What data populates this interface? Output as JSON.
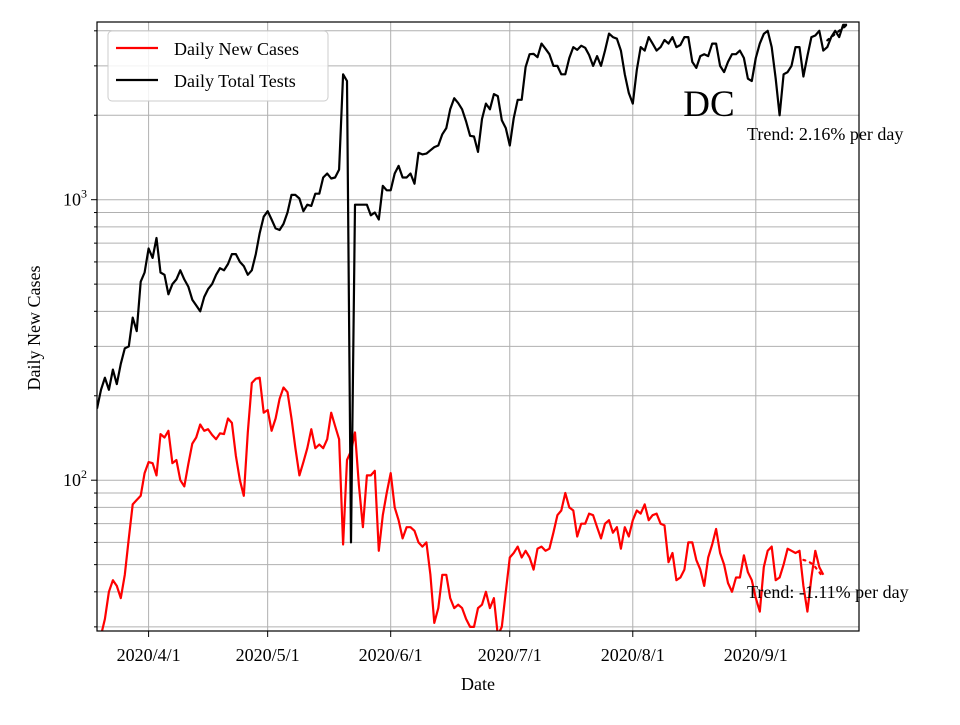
{
  "chart_data": {
    "type": "line",
    "title": "DC",
    "xlabel": "Date",
    "ylabel": "Daily New Cases",
    "yscale": "log",
    "xlim": [
      "2020-03-19",
      "2020-09-27"
    ],
    "ylim": [
      29,
      4300
    ],
    "grid": true,
    "legend_position": "top-left",
    "x_ticks": [
      {
        "date": "2020-04-01",
        "label": "2020/4/1"
      },
      {
        "date": "2020-05-01",
        "label": "2020/5/1"
      },
      {
        "date": "2020-06-01",
        "label": "2020/6/1"
      },
      {
        "date": "2020-07-01",
        "label": "2020/7/1"
      },
      {
        "date": "2020-08-01",
        "label": "2020/8/1"
      },
      {
        "date": "2020-09-01",
        "label": "2020/9/1"
      }
    ],
    "y_ticks": [
      {
        "value": 100,
        "label_base": "10",
        "label_exp": "2"
      },
      {
        "value": 1000,
        "label_base": "10",
        "label_exp": "3"
      }
    ],
    "start_date": "2020-03-19",
    "series": [
      {
        "name": "Daily New Cases",
        "color": "#ff0000",
        "values": [
          26,
          28,
          32,
          40,
          44,
          42,
          38,
          46,
          62,
          82,
          85,
          88,
          106,
          116,
          115,
          104,
          146,
          142,
          150,
          115,
          118,
          100,
          95,
          114,
          135,
          142,
          158,
          150,
          152,
          145,
          140,
          147,
          146,
          166,
          160,
          122,
          100,
          88,
          148,
          222,
          230,
          232,
          174,
          178,
          150,
          166,
          195,
          214,
          206,
          166,
          130,
          104,
          116,
          130,
          152,
          130,
          134,
          130,
          140,
          174,
          156,
          140,
          59,
          118,
          127,
          148,
          96,
          68,
          104,
          104,
          108,
          56,
          75,
          90,
          106,
          80,
          72,
          62,
          68,
          68,
          66,
          60,
          58,
          60,
          46,
          31,
          35,
          46,
          46,
          38,
          35,
          36,
          35,
          32,
          30,
          30,
          35,
          36,
          40,
          35,
          38,
          28,
          30,
          40,
          53,
          55,
          58,
          53,
          56,
          53,
          48,
          57,
          58,
          56,
          57,
          65,
          75,
          78,
          90,
          80,
          78,
          63,
          70,
          70,
          76,
          75,
          68,
          62,
          70,
          72,
          65,
          68,
          57,
          68,
          63,
          72,
          78,
          76,
          82,
          72,
          75,
          76,
          70,
          69,
          51,
          55,
          44,
          45,
          48,
          60,
          60,
          52,
          48,
          42,
          53,
          59,
          67,
          55,
          50,
          43,
          40,
          45,
          45,
          54,
          47,
          44,
          38,
          34,
          49,
          56,
          58,
          44,
          45,
          50,
          57,
          56,
          55,
          56,
          42,
          34,
          45,
          56,
          49,
          46
        ],
        "trend_label": "Trend: -1.11% per day",
        "trend_values": [
          52,
          51.5,
          50.5,
          49,
          47,
          45
        ]
      },
      {
        "name": "Daily Total Tests",
        "color": "#000000",
        "values": [
          180,
          210,
          232,
          210,
          248,
          220,
          260,
          295,
          300,
          380,
          340,
          510,
          550,
          670,
          620,
          730,
          550,
          540,
          460,
          500,
          520,
          560,
          520,
          490,
          440,
          420,
          400,
          450,
          480,
          500,
          540,
          570,
          560,
          590,
          640,
          640,
          600,
          580,
          540,
          560,
          640,
          760,
          870,
          910,
          850,
          790,
          780,
          820,
          900,
          1040,
          1040,
          1010,
          910,
          960,
          950,
          1050,
          1050,
          1200,
          1240,
          1190,
          1200,
          1280,
          2800,
          2650,
          60,
          960,
          960,
          960,
          960,
          880,
          900,
          850,
          1120,
          1080,
          1080,
          1240,
          1320,
          1200,
          1200,
          1240,
          1140,
          1470,
          1450,
          1460,
          1500,
          1540,
          1560,
          1710,
          1800,
          2100,
          2300,
          2210,
          2100,
          1900,
          1690,
          1680,
          1480,
          1940,
          2200,
          2100,
          2380,
          2340,
          1920,
          1800,
          1560,
          1950,
          2270,
          2270,
          2970,
          3300,
          3310,
          3220,
          3600,
          3450,
          3300,
          3000,
          3000,
          2800,
          2800,
          3200,
          3500,
          3420,
          3540,
          3480,
          3280,
          3000,
          3250,
          3000,
          3400,
          3910,
          3800,
          3750,
          3400,
          2800,
          2400,
          2200,
          2900,
          3500,
          3400,
          3800,
          3600,
          3400,
          3500,
          3710,
          3600,
          3800,
          3500,
          3560,
          3800,
          3800,
          3100,
          2950,
          3250,
          3300,
          3250,
          3600,
          3600,
          3000,
          2850,
          3100,
          3300,
          3300,
          3400,
          3200,
          2700,
          2650,
          3200,
          3600,
          3900,
          4000,
          3500,
          2700,
          2000,
          2800,
          2850,
          3000,
          3500,
          3500,
          2750,
          3250,
          3800,
          3850,
          4000,
          3400,
          3500,
          3800,
          4000,
          3800,
          4200,
          4200
        ],
        "trend_label": "Trend: 2.16% per day",
        "trend_values": [
          3700,
          3800,
          3900,
          4000,
          4100,
          4200
        ]
      }
    ]
  }
}
